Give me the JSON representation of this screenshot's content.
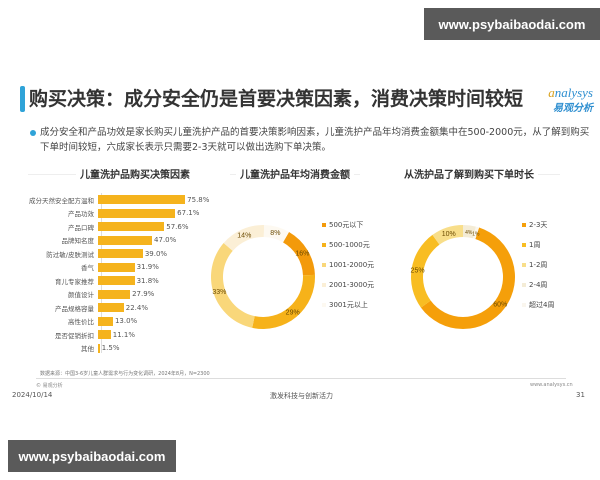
{
  "watermark": {
    "top": "www.psybaibaodai.com",
    "bottom": "www.psybaibaodai.com"
  },
  "header": {
    "title": "购买决策：成分安全仍是首要决策因素，消费决策时间较短",
    "logo_en_a": "a",
    "logo_en_rest": "nalysys",
    "logo_cn": "易观分析"
  },
  "description": "成分安全和产品功效是家长购买儿童洗护产品的首要决策影响因素，儿童洗护产品年均消费金额集中在500-2000元，从了解到购买下单时间较短，六成家长表示只需要2-3天就可以做出选购下单决策。",
  "colors": {
    "accent": "#2fa3d8",
    "bar": "#f5b31d"
  },
  "chart_data": [
    {
      "type": "bar",
      "orientation": "horizontal",
      "title": "儿童洗护品购买决策因素",
      "categories": [
        "成分天然安全配方温和",
        "产品功效",
        "产品口碑",
        "品牌知名度",
        "防过敏/皮肤测试",
        "香气",
        "育儿专家推荐",
        "颜值设计",
        "产品规格容量",
        "高性价比",
        "是否促销折扣",
        "其他"
      ],
      "values": [
        75.8,
        67.1,
        57.6,
        47.0,
        39.0,
        31.9,
        31.8,
        27.9,
        22.4,
        13.0,
        11.1,
        1.5
      ],
      "labels": [
        "75.8%",
        "67.1%",
        "57.6%",
        "47.0%",
        "39.0%",
        "31.9%",
        "31.8%",
        "27.9%",
        "22.4%",
        "13.0%",
        "11.1%",
        "1.5%"
      ],
      "unit": "%"
    },
    {
      "type": "pie",
      "variant": "donut",
      "title": "儿童洗护品年均消费金额",
      "categories": [
        "500元以下",
        "500-1000元",
        "1001-2000元",
        "2001-3000元",
        "3001元以上"
      ],
      "values": [
        16,
        29,
        33,
        14,
        8
      ],
      "labels": [
        "16%",
        "29%",
        "33%",
        "14%",
        "8%"
      ],
      "colors": [
        "#f39a0b",
        "#f6b21a",
        "#f9d77a",
        "#fbefd6",
        "#fdf9f1"
      ],
      "legend_position": "right"
    },
    {
      "type": "pie",
      "variant": "donut",
      "title": "从洗护品了解到购买下单时长",
      "categories": [
        "2-3天",
        "1周",
        "1-2周",
        "2-4周",
        "超过4周"
      ],
      "values": [
        60,
        25,
        10,
        4,
        1
      ],
      "labels": [
        "60%",
        "25%",
        "10%",
        "4%",
        "1%"
      ],
      "colors": [
        "#f59f0a",
        "#f8bd22",
        "#f8de8a",
        "#f4ecd6",
        "#faf6ee"
      ],
      "legend_position": "right"
    }
  ],
  "footer": {
    "source": "数据来源：中国3-6岁儿童人群需求与行为变化调研，2024年8月，N=2300",
    "copyright": "© 易观分析",
    "website": "www.analysys.cn",
    "date": "2024/10/14",
    "slogan": "激发科技与创新活力",
    "page": "31"
  }
}
